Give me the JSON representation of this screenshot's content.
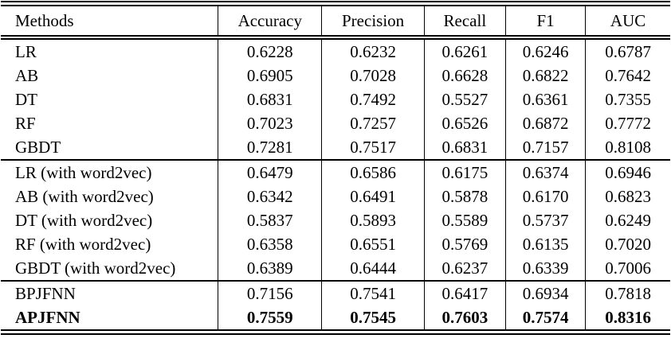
{
  "table": {
    "columns": [
      "Methods",
      "Accuracy",
      "Precision",
      "Recall",
      "F1",
      "AUC"
    ],
    "sections": [
      {
        "name": "baselines",
        "rows": [
          {
            "method": "LR",
            "bold": false,
            "values": [
              "0.6228",
              "0.6232",
              "0.6261",
              "0.6246",
              "0.6787"
            ]
          },
          {
            "method": "AB",
            "bold": false,
            "values": [
              "0.6905",
              "0.7028",
              "0.6628",
              "0.6822",
              "0.7642"
            ]
          },
          {
            "method": "DT",
            "bold": false,
            "values": [
              "0.6831",
              "0.7492",
              "0.5527",
              "0.6361",
              "0.7355"
            ]
          },
          {
            "method": "RF",
            "bold": false,
            "values": [
              "0.7023",
              "0.7257",
              "0.6526",
              "0.6872",
              "0.7772"
            ]
          },
          {
            "method": "GBDT",
            "bold": false,
            "values": [
              "0.7281",
              "0.7517",
              "0.6831",
              "0.7157",
              "0.8108"
            ]
          }
        ]
      },
      {
        "name": "baselines-word2vec",
        "rows": [
          {
            "method": "LR (with word2vec)",
            "bold": false,
            "values": [
              "0.6479",
              "0.6586",
              "0.6175",
              "0.6374",
              "0.6946"
            ]
          },
          {
            "method": "AB (with word2vec)",
            "bold": false,
            "values": [
              "0.6342",
              "0.6491",
              "0.5878",
              "0.6170",
              "0.6823"
            ]
          },
          {
            "method": "DT (with word2vec)",
            "bold": false,
            "values": [
              "0.5837",
              "0.5893",
              "0.5589",
              "0.5737",
              "0.6249"
            ]
          },
          {
            "method": "RF (with word2vec)",
            "bold": false,
            "values": [
              "0.6358",
              "0.6551",
              "0.5769",
              "0.6135",
              "0.7020"
            ]
          },
          {
            "method": "GBDT (with word2vec)",
            "bold": false,
            "values": [
              "0.6389",
              "0.6444",
              "0.6237",
              "0.6339",
              "0.7006"
            ]
          }
        ]
      },
      {
        "name": "neural-models",
        "rows": [
          {
            "method": "BPJFNN",
            "bold": false,
            "values": [
              "0.7156",
              "0.7541",
              "0.6417",
              "0.6934",
              "0.7818"
            ]
          },
          {
            "method": "APJFNN",
            "bold": true,
            "values": [
              "0.7559",
              "0.7545",
              "0.7603",
              "0.7574",
              "0.8316"
            ]
          }
        ]
      }
    ]
  },
  "chart_data": {
    "type": "table",
    "title": "",
    "columns": [
      "Methods",
      "Accuracy",
      "Precision",
      "Recall",
      "F1",
      "AUC"
    ],
    "rows": [
      [
        "LR",
        0.6228,
        0.6232,
        0.6261,
        0.6246,
        0.6787
      ],
      [
        "AB",
        0.6905,
        0.7028,
        0.6628,
        0.6822,
        0.7642
      ],
      [
        "DT",
        0.6831,
        0.7492,
        0.5527,
        0.6361,
        0.7355
      ],
      [
        "RF",
        0.7023,
        0.7257,
        0.6526,
        0.6872,
        0.7772
      ],
      [
        "GBDT",
        0.7281,
        0.7517,
        0.6831,
        0.7157,
        0.8108
      ],
      [
        "LR (with word2vec)",
        0.6479,
        0.6586,
        0.6175,
        0.6374,
        0.6946
      ],
      [
        "AB (with word2vec)",
        0.6342,
        0.6491,
        0.5878,
        0.617,
        0.6823
      ],
      [
        "DT (with word2vec)",
        0.5837,
        0.5893,
        0.5589,
        0.5737,
        0.6249
      ],
      [
        "RF (with word2vec)",
        0.6358,
        0.6551,
        0.5769,
        0.6135,
        0.702
      ],
      [
        "GBDT (with word2vec)",
        0.6389,
        0.6444,
        0.6237,
        0.6339,
        0.7006
      ],
      [
        "BPJFNN",
        0.7156,
        0.7541,
        0.6417,
        0.6934,
        0.7818
      ],
      [
        "APJFNN",
        0.7559,
        0.7545,
        0.7603,
        0.7574,
        0.8316
      ]
    ]
  }
}
